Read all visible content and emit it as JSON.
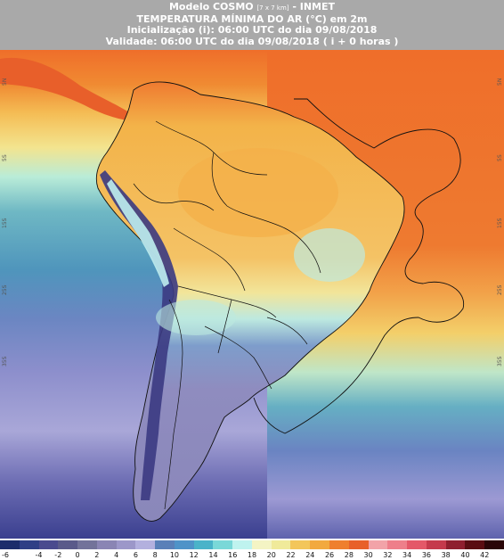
{
  "header": {
    "line1_main": "Modelo COSMO ",
    "line1_small": "[7 x 7 km]",
    "line1_tail": " - INMET",
    "line2": "TEMPERATURA MÍNIMA DO AR (°C) em 2m",
    "line3": "Inicialização (i): 06:00 UTC do dia 09/08/2018",
    "line4": "Validade: 06:00 UTC do dia 09/08/2018 ( i + 0 horas )"
  },
  "axis_labels": {
    "left": [
      "5N",
      "5S",
      "15S",
      "25S",
      "35S"
    ],
    "right": [
      "5N",
      "5S",
      "15S",
      "25S",
      "35S"
    ]
  },
  "legend": {
    "ticks": [
      "-6",
      "-4",
      "-2",
      "0",
      "2",
      "4",
      "6",
      "8",
      "10",
      "12",
      "14",
      "16",
      "18",
      "20",
      "22",
      "24",
      "26",
      "28",
      "30",
      "32",
      "34",
      "36",
      "38",
      "40",
      "42"
    ],
    "colors": [
      "#1c2d6b",
      "#2f3f86",
      "#4a4a8e",
      "#5a5a8a",
      "#73739a",
      "#8a85b4",
      "#9c97c9",
      "#b3b0de",
      "#5a80b8",
      "#4f93c8",
      "#4ab3c9",
      "#7ad8d8",
      "#bff3ef",
      "#f4f4c4",
      "#f0ea9a",
      "#f3c65a",
      "#f2a93f",
      "#ef7f2e",
      "#e8602a",
      "#f2a3a8",
      "#ee7f8a",
      "#e45868",
      "#c53a4c",
      "#8f1f2e",
      "#5a0d12",
      "#2a0508"
    ]
  },
  "map": {
    "projection": "lat-lon",
    "region": "South America",
    "colors": {
      "warm_north": "#ef6e2a",
      "land_tropical": "#f3b349",
      "ocean_mid": "#5aa5b8",
      "ocean_cold": "#7d83c4",
      "andes": "#3b3a82",
      "patagonia": "#8f8cbf"
    }
  }
}
